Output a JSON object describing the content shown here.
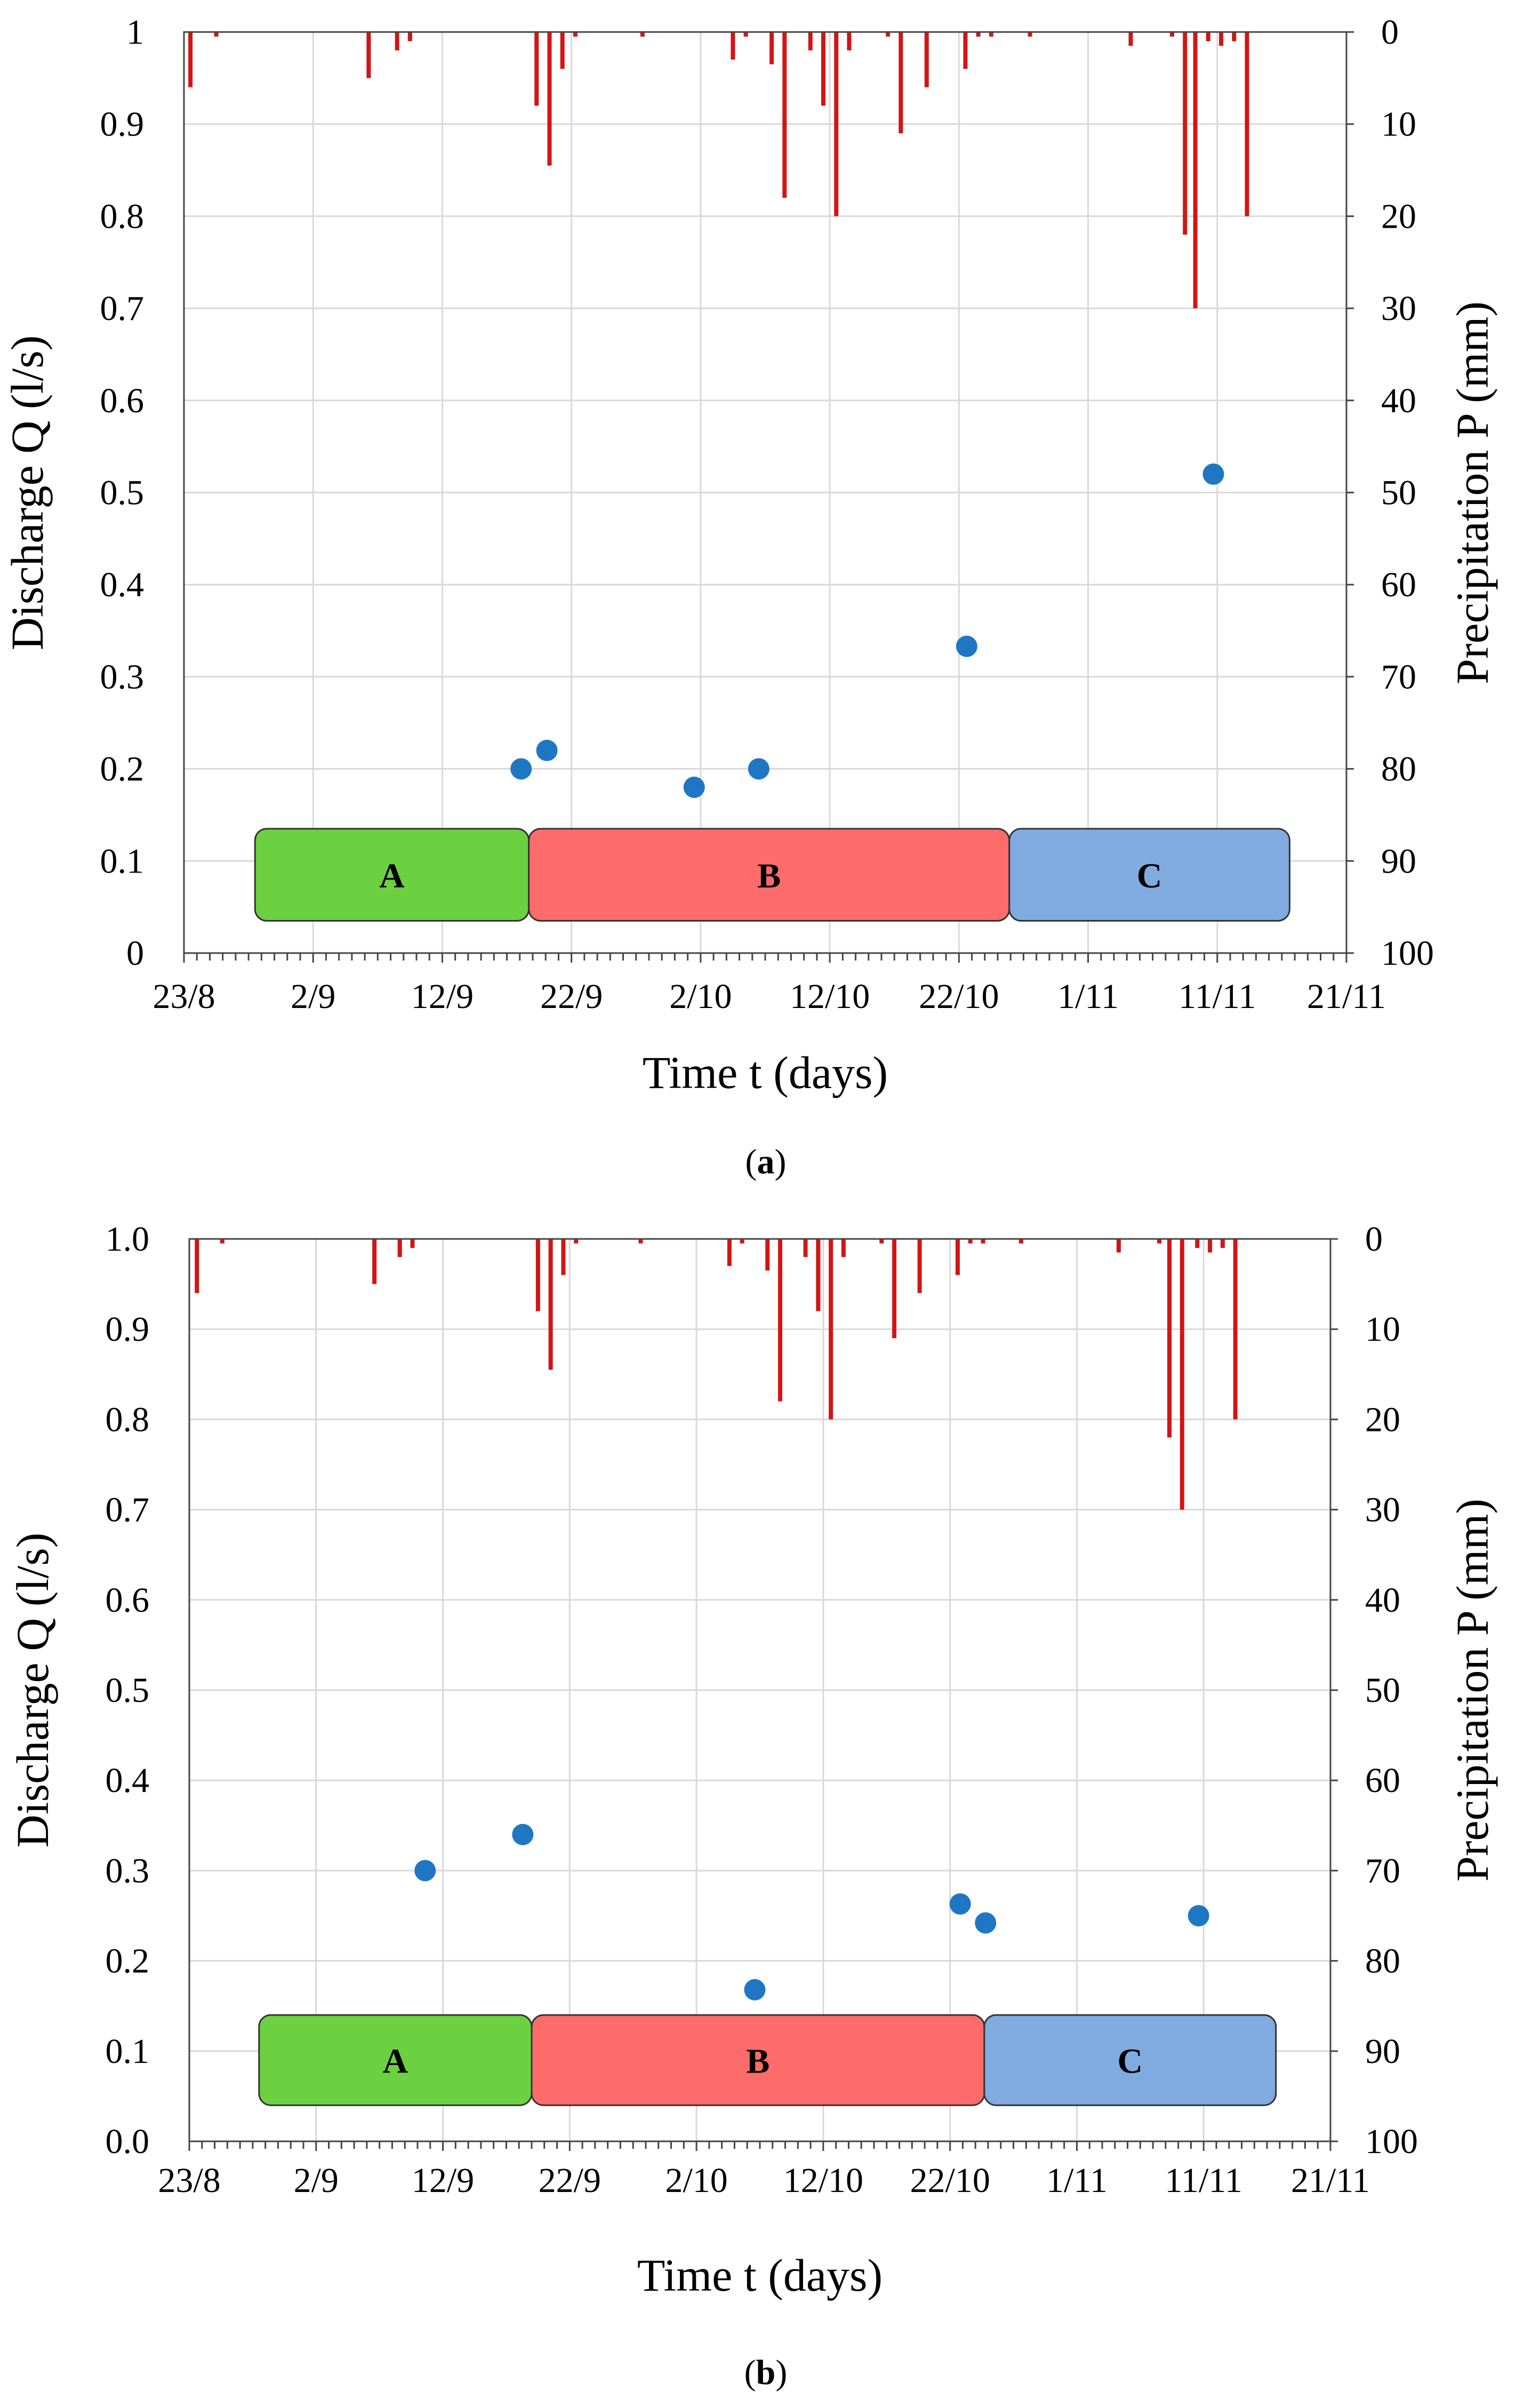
{
  "chart_data": [
    {
      "type": "scatter",
      "caption_letter": "a",
      "xlabel": "Time t (days)",
      "ylabel_left": "Discharge Q (l/s)",
      "ylabel_right": "Precipitation P (mm)",
      "x_ticks": [
        "23/8",
        "2/9",
        "12/9",
        "22/9",
        "2/10",
        "12/10",
        "22/10",
        "1/11",
        "11/11",
        "21/11"
      ],
      "x_range_days": [
        0,
        90
      ],
      "ylim_left": [
        0,
        1
      ],
      "ylim_right": [
        0,
        100
      ],
      "left_tick_labels": [
        "0",
        "0.1",
        "0.2",
        "0.3",
        "0.4",
        "0.5",
        "0.6",
        "0.7",
        "0.8",
        "0.9",
        "1"
      ],
      "right_tick_labels": [
        "0",
        "10",
        "20",
        "30",
        "40",
        "50",
        "60",
        "70",
        "80",
        "90",
        "100"
      ],
      "grid": true,
      "colors": {
        "discharge": "#1f77c4",
        "precipitation": "#d41414",
        "A": "#6bd140",
        "B": "#fd6b6b",
        "C": "#80abe0"
      },
      "discharge": [
        {
          "day": 26.1,
          "q": 0.2
        },
        {
          "day": 28.1,
          "q": 0.22
        },
        {
          "day": 39.5,
          "q": 0.18
        },
        {
          "day": 44.5,
          "q": 0.2
        },
        {
          "day": 60.6,
          "q": 0.333
        },
        {
          "day": 79.7,
          "q": 0.52
        }
      ],
      "precipitation": [
        {
          "day": 0.5,
          "p": 6
        },
        {
          "day": 2.5,
          "p": 0.5
        },
        {
          "day": 14.3,
          "p": 5
        },
        {
          "day": 16.5,
          "p": 2
        },
        {
          "day": 17.5,
          "p": 1
        },
        {
          "day": 27.3,
          "p": 8
        },
        {
          "day": 28.3,
          "p": 14.5
        },
        {
          "day": 29.3,
          "p": 4
        },
        {
          "day": 30.3,
          "p": 0.5
        },
        {
          "day": 35.5,
          "p": 0.5
        },
        {
          "day": 42.5,
          "p": 3
        },
        {
          "day": 43.5,
          "p": 0.5
        },
        {
          "day": 45.5,
          "p": 3.5
        },
        {
          "day": 46.5,
          "p": 18
        },
        {
          "day": 48.5,
          "p": 2
        },
        {
          "day": 49.5,
          "p": 8
        },
        {
          "day": 50.5,
          "p": 20
        },
        {
          "day": 51.5,
          "p": 2
        },
        {
          "day": 54.5,
          "p": 0.5
        },
        {
          "day": 55.5,
          "p": 11
        },
        {
          "day": 57.5,
          "p": 6
        },
        {
          "day": 60.5,
          "p": 4
        },
        {
          "day": 61.5,
          "p": 0.5
        },
        {
          "day": 62.5,
          "p": 0.5
        },
        {
          "day": 65.5,
          "p": 0.5
        },
        {
          "day": 73.3,
          "p": 1.5
        },
        {
          "day": 76.5,
          "p": 0.5
        },
        {
          "day": 77.5,
          "p": 22
        },
        {
          "day": 78.3,
          "p": 30
        },
        {
          "day": 79.3,
          "p": 1
        },
        {
          "day": 80.3,
          "p": 1.5
        },
        {
          "day": 81.3,
          "p": 1
        },
        {
          "day": 82.3,
          "p": 20
        }
      ],
      "phases": [
        {
          "label": "A",
          "start_day": 5.5,
          "end_day": 26.7,
          "q_low": 0.035,
          "q_high": 0.135
        },
        {
          "label": "B",
          "start_day": 26.7,
          "end_day": 63.9,
          "q_low": 0.035,
          "q_high": 0.135
        },
        {
          "label": "C",
          "start_day": 63.9,
          "end_day": 85.6,
          "q_low": 0.035,
          "q_high": 0.135
        }
      ]
    },
    {
      "type": "scatter",
      "caption_letter": "b",
      "xlabel": "Time t (days)",
      "ylabel_left": "Discharge Q (l/s)",
      "ylabel_right": "Precipitation P (mm)",
      "x_ticks": [
        "23/8",
        "2/9",
        "12/9",
        "22/9",
        "2/10",
        "12/10",
        "22/10",
        "1/11",
        "11/11",
        "21/11"
      ],
      "x_range_days": [
        0,
        90
      ],
      "ylim_left": [
        0,
        1
      ],
      "ylim_right": [
        0,
        100
      ],
      "left_tick_labels": [
        "0.0",
        "0.1",
        "0.2",
        "0.3",
        "0.4",
        "0.5",
        "0.6",
        "0.7",
        "0.8",
        "0.9",
        "1.0"
      ],
      "right_tick_labels": [
        "0",
        "10",
        "20",
        "30",
        "40",
        "50",
        "60",
        "70",
        "80",
        "90",
        "100"
      ],
      "grid": true,
      "colors": {
        "discharge": "#1f77c4",
        "precipitation": "#d41414",
        "A": "#6bd140",
        "B": "#fd6b6b",
        "C": "#80abe0"
      },
      "discharge": [
        {
          "day": 18.6,
          "q": 0.3
        },
        {
          "day": 26.3,
          "q": 0.34
        },
        {
          "day": 44.6,
          "q": 0.168
        },
        {
          "day": 60.8,
          "q": 0.263
        },
        {
          "day": 62.8,
          "q": 0.242
        },
        {
          "day": 79.6,
          "q": 0.25
        }
      ],
      "precipitation": [
        {
          "day": 0.6,
          "p": 6
        },
        {
          "day": 2.6,
          "p": 0.5
        },
        {
          "day": 14.6,
          "p": 5
        },
        {
          "day": 16.6,
          "p": 2
        },
        {
          "day": 17.6,
          "p": 1
        },
        {
          "day": 27.5,
          "p": 8
        },
        {
          "day": 28.5,
          "p": 14.5
        },
        {
          "day": 29.5,
          "p": 4
        },
        {
          "day": 30.5,
          "p": 0.5
        },
        {
          "day": 35.6,
          "p": 0.5
        },
        {
          "day": 42.6,
          "p": 3
        },
        {
          "day": 43.6,
          "p": 0.5
        },
        {
          "day": 45.6,
          "p": 3.5
        },
        {
          "day": 46.6,
          "p": 18
        },
        {
          "day": 48.6,
          "p": 2
        },
        {
          "day": 49.6,
          "p": 8
        },
        {
          "day": 50.6,
          "p": 20
        },
        {
          "day": 51.6,
          "p": 2
        },
        {
          "day": 54.6,
          "p": 0.5
        },
        {
          "day": 55.6,
          "p": 11
        },
        {
          "day": 57.6,
          "p": 6
        },
        {
          "day": 60.6,
          "p": 4
        },
        {
          "day": 61.6,
          "p": 0.5
        },
        {
          "day": 62.6,
          "p": 0.5
        },
        {
          "day": 65.6,
          "p": 0.5
        },
        {
          "day": 73.3,
          "p": 1.5
        },
        {
          "day": 76.5,
          "p": 0.5
        },
        {
          "day": 77.3,
          "p": 22
        },
        {
          "day": 78.3,
          "p": 30
        },
        {
          "day": 79.5,
          "p": 1
        },
        {
          "day": 80.5,
          "p": 1.5
        },
        {
          "day": 81.5,
          "p": 1
        },
        {
          "day": 82.5,
          "p": 20
        }
      ],
      "phases": [
        {
          "label": "A",
          "start_day": 5.5,
          "end_day": 27.0,
          "q_low": 0.04,
          "q_high": 0.14
        },
        {
          "label": "B",
          "start_day": 27.0,
          "end_day": 62.7,
          "q_low": 0.04,
          "q_high": 0.14
        },
        {
          "label": "C",
          "start_day": 62.7,
          "end_day": 85.7,
          "q_low": 0.04,
          "q_high": 0.14
        }
      ]
    }
  ]
}
